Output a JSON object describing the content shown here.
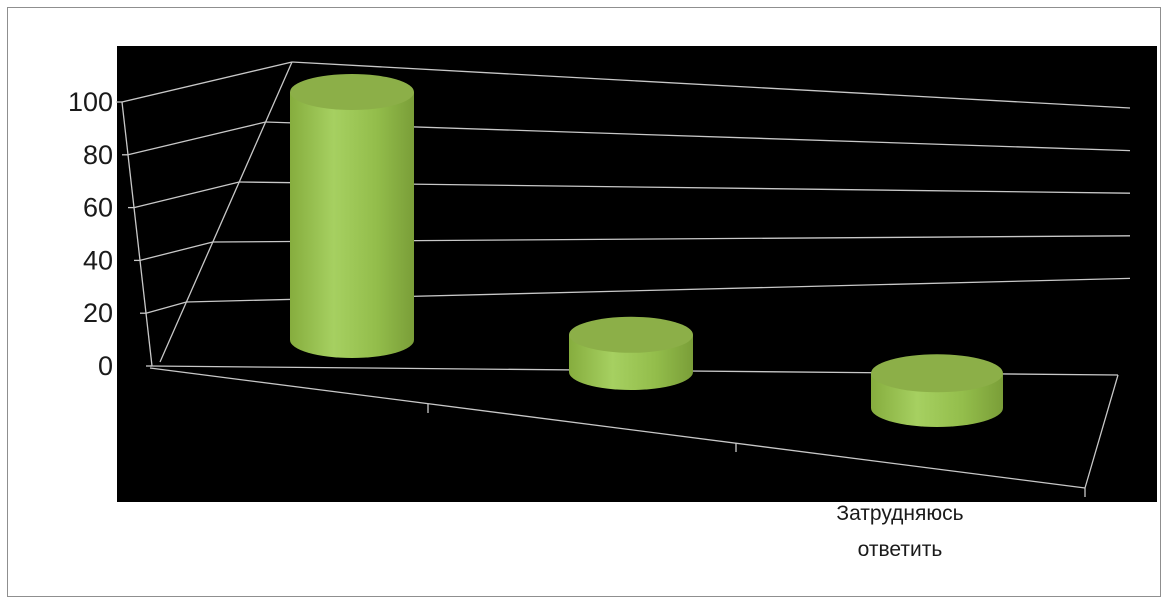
{
  "chart_data": {
    "type": "bar",
    "style": "3d-cylinder",
    "categories": [
      "",
      "",
      "Затрудняюсь ответить"
    ],
    "values": [
      100,
      15,
      14
    ],
    "ylim": [
      0,
      100
    ],
    "yticks": [
      0,
      20,
      40,
      60,
      80,
      100
    ],
    "grid": true,
    "legend": "none",
    "colors": {
      "plot_background": "#000000",
      "bar_fill": "#97c04e",
      "bar_top": "#8caf48",
      "grid": "#c8c8c8",
      "frame_border": "#8f8f8f"
    }
  }
}
